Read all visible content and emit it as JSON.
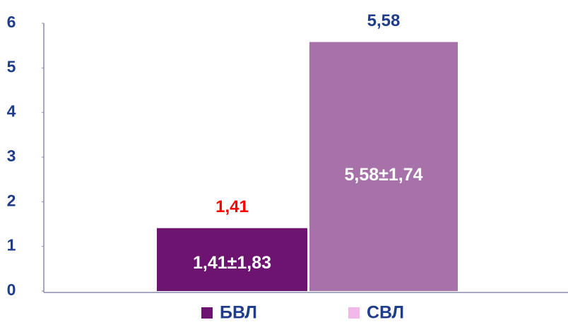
{
  "chart_data": {
    "type": "bar",
    "categories": [
      null
    ],
    "series": [
      {
        "name": "БВЛ",
        "color": "#6d1470",
        "legend_color": "#6d1470",
        "label_color": "#ff0000",
        "values": [
          1.41
        ],
        "value_labels": [
          "1,41"
        ],
        "inner_labels": [
          "1,41±1,83"
        ]
      },
      {
        "name": "СВЛ",
        "color": "#a672a9",
        "legend_color": "#f2b8ec",
        "label_color": "#1f3d8a",
        "values": [
          5.58
        ],
        "value_labels": [
          "5,58"
        ],
        "inner_labels": [
          "5,58±1,74"
        ]
      }
    ],
    "ylim": [
      0,
      6
    ],
    "yticks": [
      0,
      1,
      2,
      3,
      4,
      5,
      6
    ],
    "grid": false
  }
}
